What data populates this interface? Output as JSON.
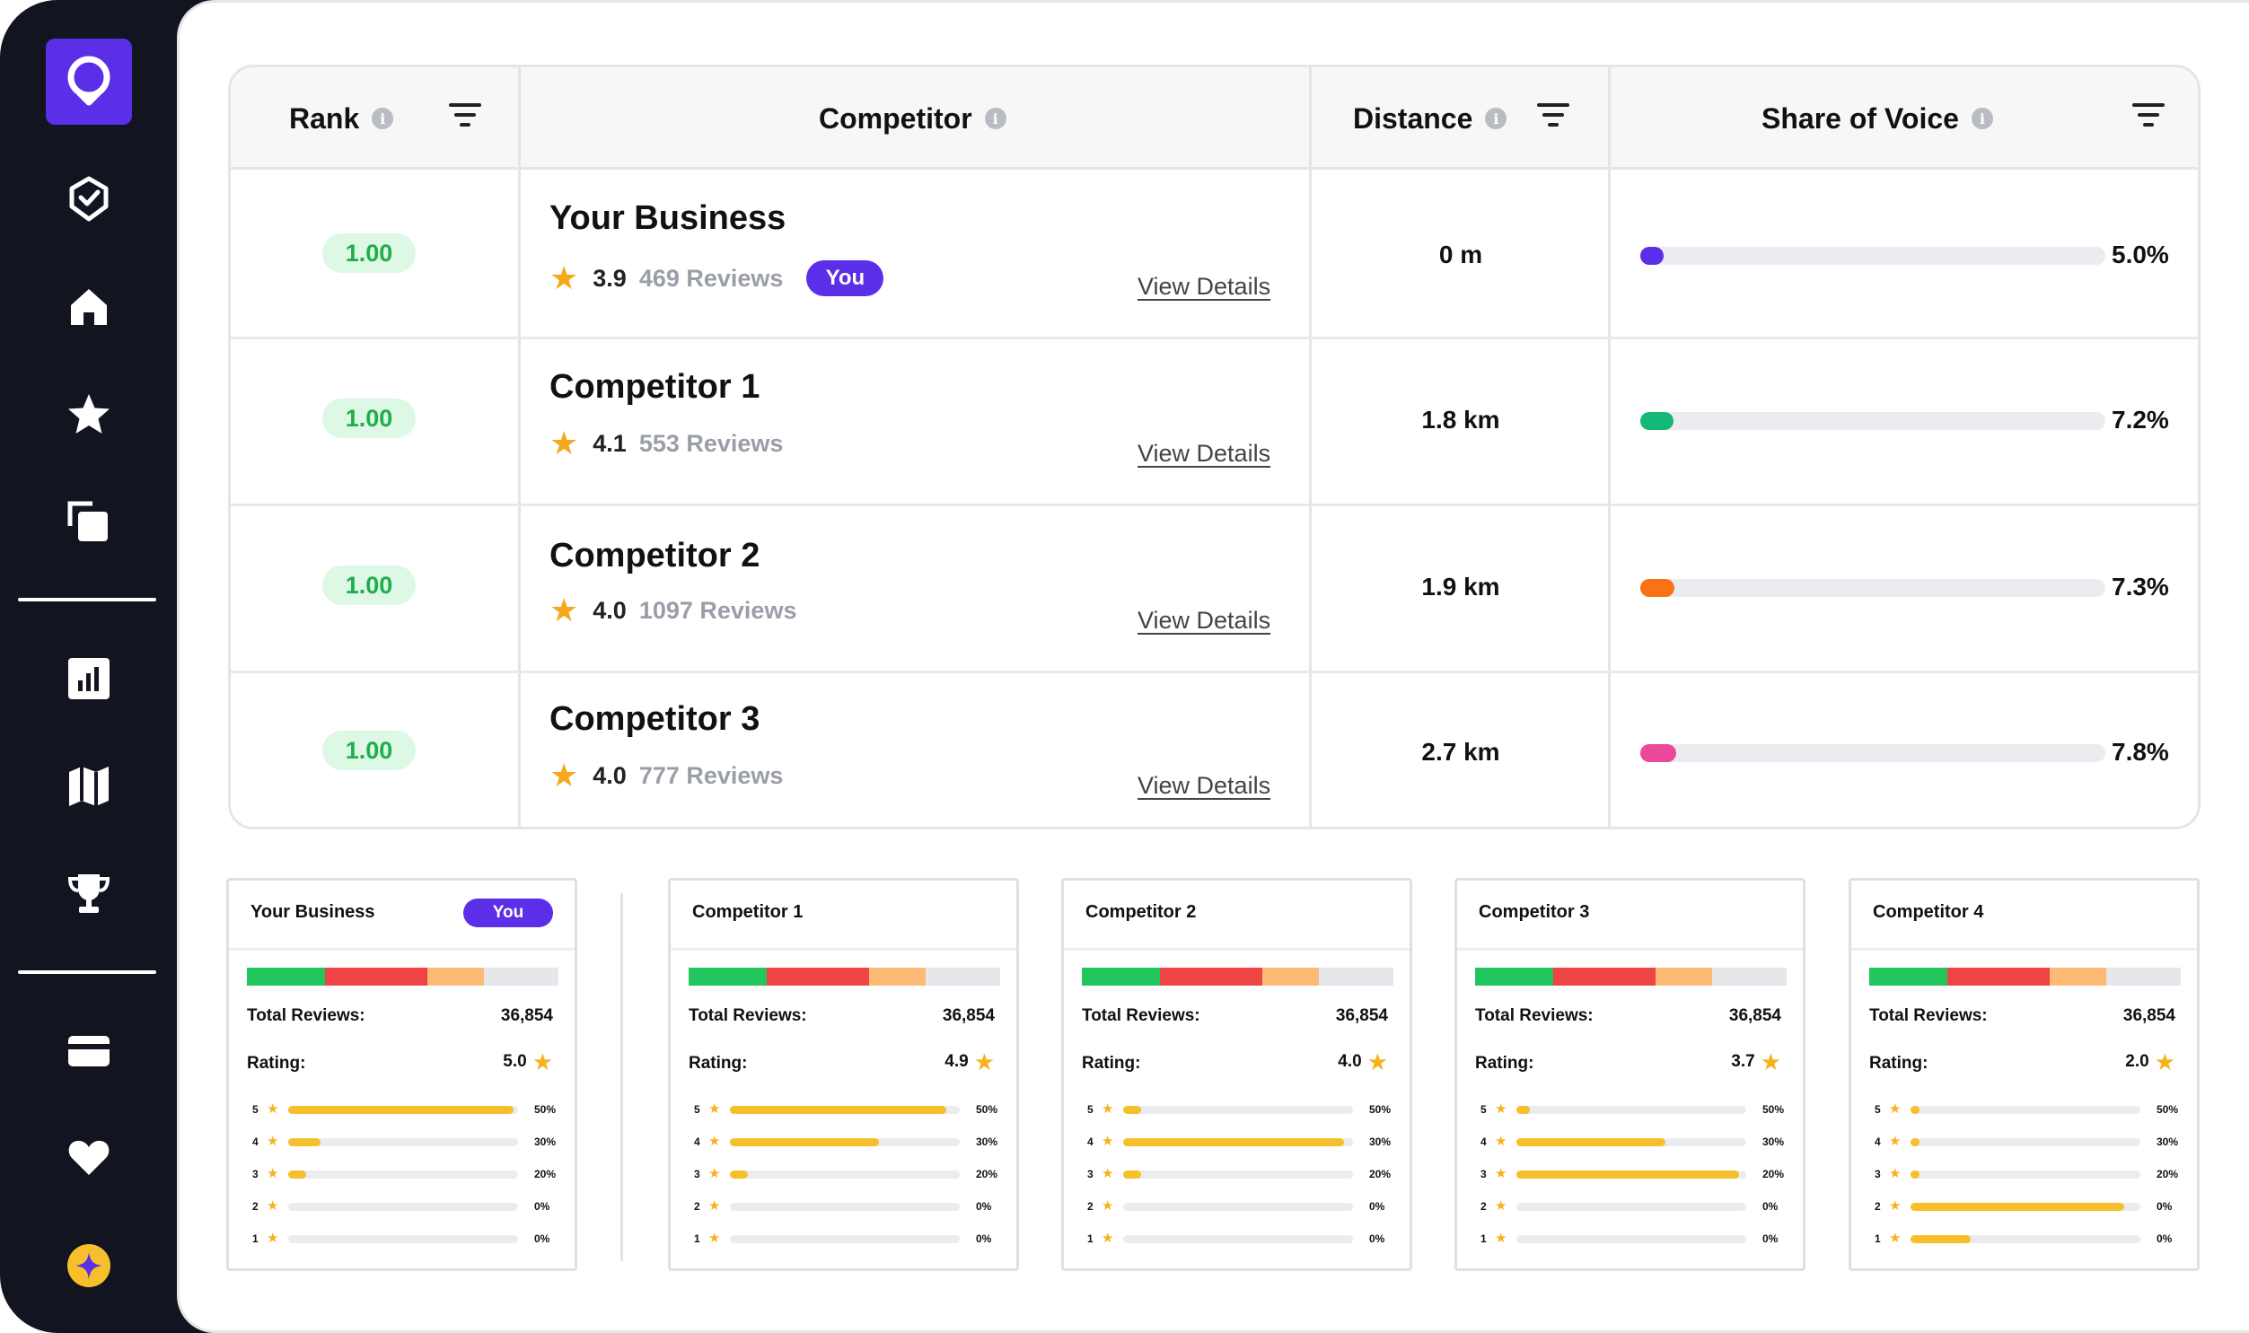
{
  "sidebar": {
    "icons": [
      "logo-pin-icon",
      "badge-check-icon",
      "home-icon",
      "star-icon",
      "copy-icon",
      "chart-icon",
      "map-icon",
      "trophy-icon",
      "card-icon",
      "heart-icon",
      "sparkle-icon"
    ]
  },
  "table": {
    "headers": {
      "rank": "Rank",
      "competitor": "Competitor",
      "distance": "Distance",
      "sov": "Share of Voice"
    },
    "info_glyph": "i",
    "view_details_label": "View Details",
    "you_label": "You",
    "rows": [
      {
        "rank": "1.00",
        "name": "Your Business",
        "rating": "3.9",
        "reviews": "469 Reviews",
        "is_you": true,
        "distance": "0 m",
        "sov": "5.0%",
        "sov_value": 5.0,
        "color": "#5b2ee8"
      },
      {
        "rank": "1.00",
        "name": "Competitor 1",
        "rating": "4.1",
        "reviews": "553 Reviews",
        "is_you": false,
        "distance": "1.8 km",
        "sov": "7.2%",
        "sov_value": 7.2,
        "color": "#16b877"
      },
      {
        "rank": "1.00",
        "name": "Competitor 2",
        "rating": "4.0",
        "reviews": "1097 Reviews",
        "is_you": false,
        "distance": "1.9 km",
        "sov": "7.3%",
        "sov_value": 7.3,
        "color": "#f97316"
      },
      {
        "rank": "1.00",
        "name": "Competitor 3",
        "rating": "4.0",
        "reviews": "777 Reviews",
        "is_you": false,
        "distance": "2.7 km",
        "sov": "7.8%",
        "sov_value": 7.8,
        "color": "#ec4899"
      }
    ]
  },
  "cards": {
    "total_reviews_label": "Total Reviews:",
    "rating_label": "Rating:",
    "you_label": "You",
    "distribution_colors": [
      "#22c55e",
      "#ef4444",
      "#fdba74",
      "#e5e7eb"
    ],
    "distribution_values": [
      25,
      33,
      18,
      24
    ],
    "items": [
      {
        "title": "Your Business",
        "is_you": true,
        "total_reviews": "36,854",
        "rating": "5.0",
        "breakdown": [
          {
            "star": "5",
            "pct": "50%",
            "value": 98
          },
          {
            "star": "4",
            "pct": "30%",
            "value": 14
          },
          {
            "star": "3",
            "pct": "20%",
            "value": 8
          },
          {
            "star": "2",
            "pct": "0%",
            "value": 0
          },
          {
            "star": "1",
            "pct": "0%",
            "value": 0
          }
        ]
      },
      {
        "title": "Competitor 1",
        "is_you": false,
        "total_reviews": "36,854",
        "rating": "4.9",
        "breakdown": [
          {
            "star": "5",
            "pct": "50%",
            "value": 94
          },
          {
            "star": "4",
            "pct": "30%",
            "value": 65
          },
          {
            "star": "3",
            "pct": "20%",
            "value": 8
          },
          {
            "star": "2",
            "pct": "0%",
            "value": 0
          },
          {
            "star": "1",
            "pct": "0%",
            "value": 0
          }
        ]
      },
      {
        "title": "Competitor 2",
        "is_you": false,
        "total_reviews": "36,854",
        "rating": "4.0",
        "breakdown": [
          {
            "star": "5",
            "pct": "50%",
            "value": 8
          },
          {
            "star": "4",
            "pct": "30%",
            "value": 96
          },
          {
            "star": "3",
            "pct": "20%",
            "value": 8
          },
          {
            "star": "2",
            "pct": "0%",
            "value": 0
          },
          {
            "star": "1",
            "pct": "0%",
            "value": 0
          }
        ]
      },
      {
        "title": "Competitor 3",
        "is_you": false,
        "total_reviews": "36,854",
        "rating": "3.7",
        "breakdown": [
          {
            "star": "5",
            "pct": "50%",
            "value": 6
          },
          {
            "star": "4",
            "pct": "30%",
            "value": 65
          },
          {
            "star": "3",
            "pct": "20%",
            "value": 97
          },
          {
            "star": "2",
            "pct": "0%",
            "value": 0
          },
          {
            "star": "1",
            "pct": "0%",
            "value": 0
          }
        ]
      },
      {
        "title": "Competitor 4",
        "is_you": false,
        "total_reviews": "36,854",
        "rating": "2.0",
        "breakdown": [
          {
            "star": "5",
            "pct": "50%",
            "value": 4
          },
          {
            "star": "4",
            "pct": "30%",
            "value": 4
          },
          {
            "star": "3",
            "pct": "20%",
            "value": 4
          },
          {
            "star": "2",
            "pct": "0%",
            "value": 93
          },
          {
            "star": "1",
            "pct": "0%",
            "value": 26
          }
        ]
      }
    ]
  }
}
